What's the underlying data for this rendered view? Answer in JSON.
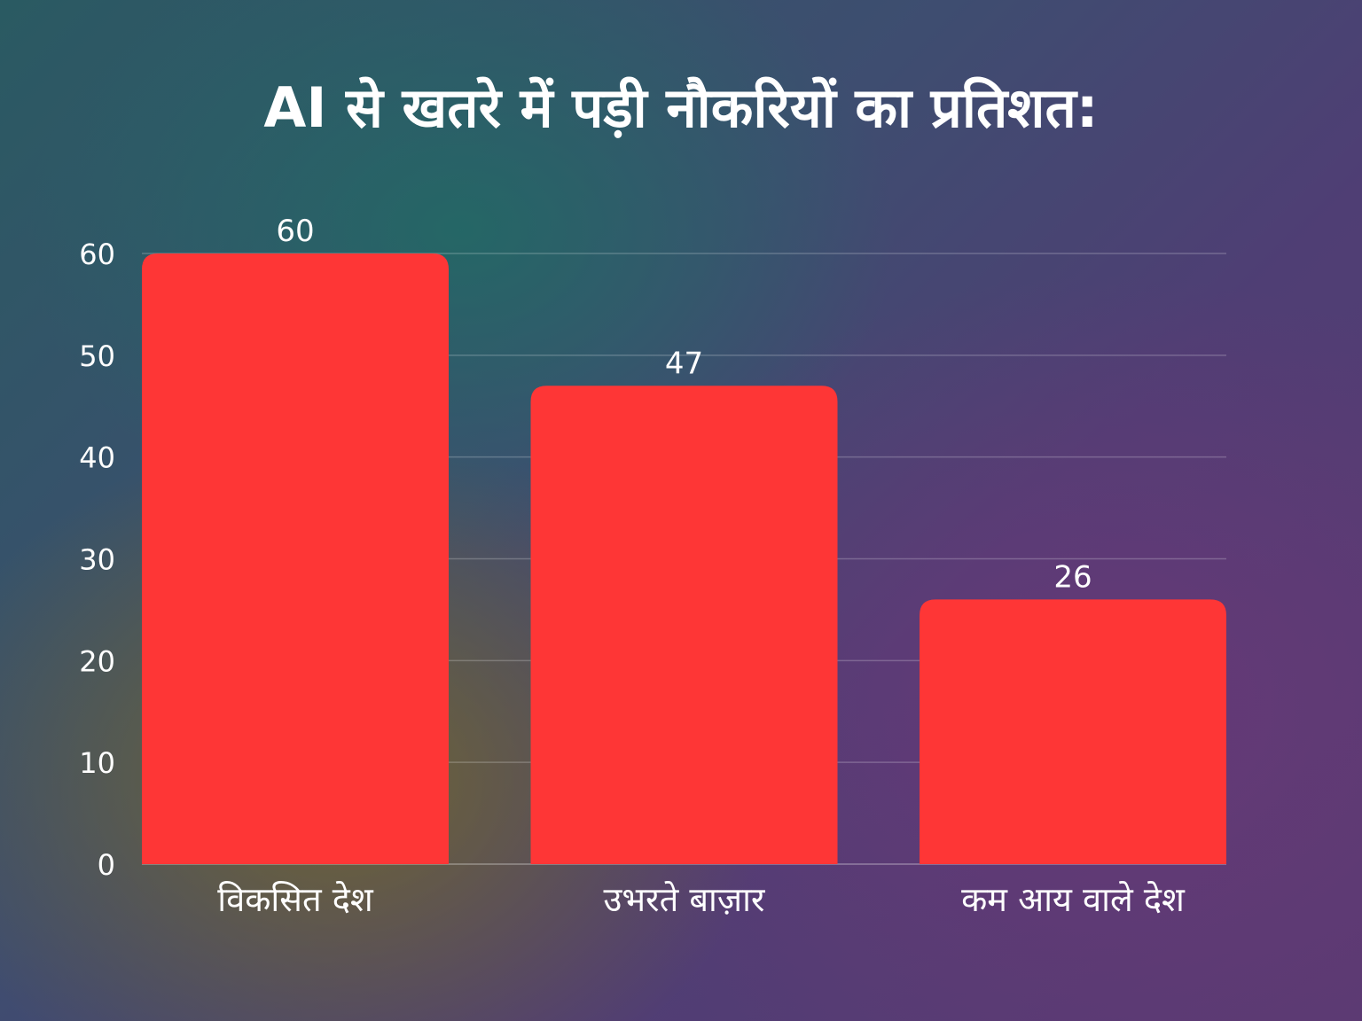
{
  "chart_data": {
    "type": "bar",
    "title": "AI से खतरे में पड़ी नौकरियों का प्रतिशत:",
    "categories": [
      "विकसित देश",
      "उभरते बाज़ार",
      "कम आय वाले देश"
    ],
    "values": [
      60,
      47,
      26
    ],
    "data_labels": [
      "60",
      "47",
      "26"
    ],
    "yticks": [
      0,
      10,
      20,
      30,
      40,
      50,
      60
    ],
    "ylim": [
      0,
      60
    ],
    "xlabel": "",
    "ylabel": "",
    "grid": true,
    "bar_color": "#fe3636",
    "text_color": "#ffffff"
  }
}
